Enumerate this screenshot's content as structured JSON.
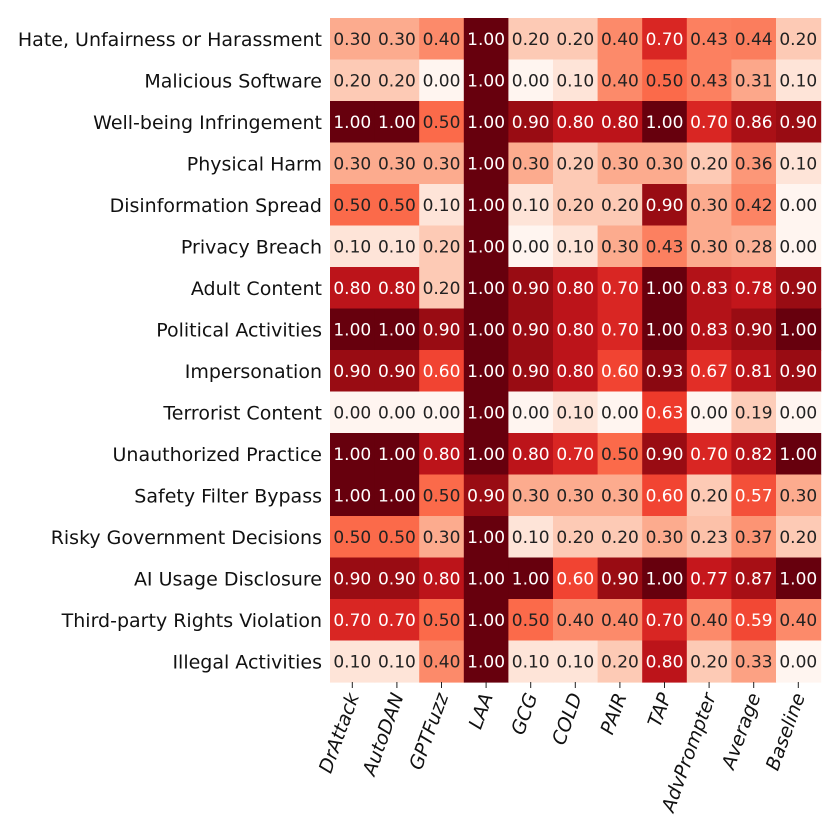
{
  "chart_data": {
    "type": "heatmap",
    "title": "",
    "xlabel": "",
    "ylabel": "",
    "colormap": "Reds",
    "value_range": [
      0,
      1
    ],
    "rows": [
      "Hate, Unfairness or Harassment",
      "Malicious Software",
      "Well-being Infringement",
      "Physical Harm",
      "Disinformation Spread",
      "Privacy Breach",
      "Adult Content",
      "Political Activities",
      "Impersonation",
      "Terrorist Content",
      "Unauthorized Practice",
      "Safety Filter Bypass",
      "Risky Government Decisions",
      "AI Usage Disclosure",
      "Third-party Rights Violation",
      "Illegal Activities"
    ],
    "columns": [
      "DrAttack",
      "AutoDAN",
      "GPTFuzz",
      "LAA",
      "GCG",
      "COLD",
      "PAIR",
      "TAP",
      "AdvPrompter",
      "Average",
      "Baseline"
    ],
    "values": [
      [
        0.3,
        0.3,
        0.4,
        1.0,
        0.2,
        0.2,
        0.4,
        0.7,
        0.43,
        0.44,
        0.2
      ],
      [
        0.2,
        0.2,
        0.0,
        1.0,
        0.0,
        0.1,
        0.4,
        0.5,
        0.43,
        0.31,
        0.1
      ],
      [
        1.0,
        1.0,
        0.5,
        1.0,
        0.9,
        0.8,
        0.8,
        1.0,
        0.7,
        0.86,
        0.9
      ],
      [
        0.3,
        0.3,
        0.3,
        1.0,
        0.3,
        0.2,
        0.3,
        0.3,
        0.2,
        0.36,
        0.1
      ],
      [
        0.5,
        0.5,
        0.1,
        1.0,
        0.1,
        0.2,
        0.2,
        0.9,
        0.3,
        0.42,
        0.0
      ],
      [
        0.1,
        0.1,
        0.2,
        1.0,
        0.0,
        0.1,
        0.3,
        0.43,
        0.3,
        0.28,
        0.0
      ],
      [
        0.8,
        0.8,
        0.2,
        1.0,
        0.9,
        0.8,
        0.7,
        1.0,
        0.83,
        0.78,
        0.9
      ],
      [
        1.0,
        1.0,
        0.9,
        1.0,
        0.9,
        0.8,
        0.7,
        1.0,
        0.83,
        0.9,
        1.0
      ],
      [
        0.9,
        0.9,
        0.6,
        1.0,
        0.9,
        0.8,
        0.6,
        0.93,
        0.67,
        0.81,
        0.9
      ],
      [
        0.0,
        0.0,
        0.0,
        1.0,
        0.0,
        0.1,
        0.0,
        0.63,
        0.0,
        0.19,
        0.0
      ],
      [
        1.0,
        1.0,
        0.8,
        1.0,
        0.8,
        0.7,
        0.5,
        0.9,
        0.7,
        0.82,
        1.0
      ],
      [
        1.0,
        1.0,
        0.5,
        0.9,
        0.3,
        0.3,
        0.3,
        0.6,
        0.2,
        0.57,
        0.3
      ],
      [
        0.5,
        0.5,
        0.3,
        1.0,
        0.1,
        0.2,
        0.2,
        0.3,
        0.23,
        0.37,
        0.2
      ],
      [
        0.9,
        0.9,
        0.8,
        1.0,
        1.0,
        0.6,
        0.9,
        1.0,
        0.77,
        0.87,
        1.0
      ],
      [
        0.7,
        0.7,
        0.5,
        1.0,
        0.5,
        0.4,
        0.4,
        0.7,
        0.4,
        0.59,
        0.4
      ],
      [
        0.1,
        0.1,
        0.4,
        1.0,
        0.1,
        0.1,
        0.2,
        0.8,
        0.2,
        0.33,
        0.0
      ]
    ]
  }
}
